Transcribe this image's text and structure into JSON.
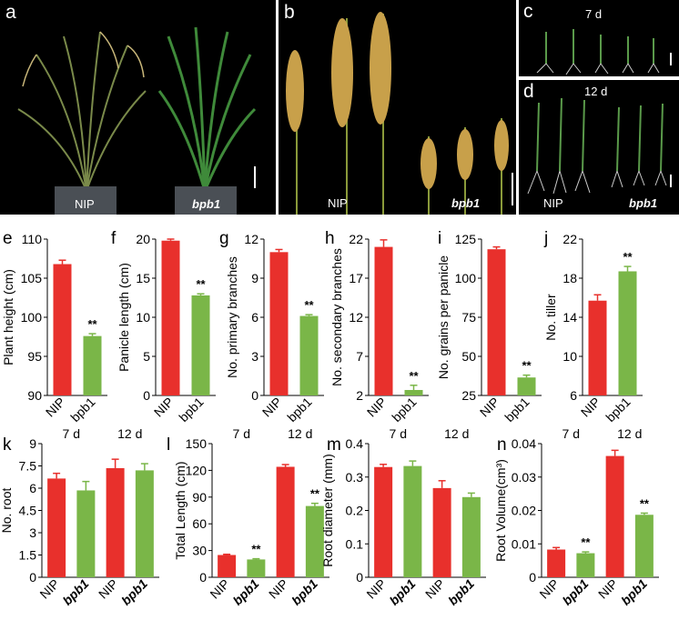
{
  "photos": {
    "a": {
      "letter": "a",
      "labels": [
        "NIP",
        "bpb1"
      ]
    },
    "b": {
      "letter": "b",
      "labels": [
        "NIP",
        "bpb1"
      ]
    },
    "c": {
      "letter": "c",
      "stage": "7 d"
    },
    "d": {
      "letter": "d",
      "stage": "12 d",
      "labels": [
        "NIP",
        "bpb1"
      ]
    }
  },
  "colors": {
    "nip": "#e8302c",
    "bpb1": "#7ab648",
    "photo_bg": "#000000"
  },
  "chart_data": [
    {
      "id": "e",
      "letter": "e",
      "type": "bar",
      "categories": [
        "NIP",
        "bpb1"
      ],
      "values": [
        106.8,
        97.6
      ],
      "errors": [
        0.5,
        0.3
      ],
      "ylabel": "Plant height (cm)",
      "ylim": [
        90,
        110
      ],
      "yticks": [
        "90",
        "95",
        "100",
        "105",
        "110"
      ],
      "annotations": [
        {
          "index": 1,
          "text": "**"
        }
      ]
    },
    {
      "id": "f",
      "letter": "f",
      "type": "bar",
      "categories": [
        "NIP",
        "bpb1"
      ],
      "values": [
        19.8,
        12.8
      ],
      "errors": [
        0.2,
        0.2
      ],
      "ylabel": "Panicle length (cm)",
      "ylim": [
        0,
        20
      ],
      "yticks": [
        "0",
        "5",
        "10",
        "15",
        "20"
      ],
      "annotations": [
        {
          "index": 1,
          "text": "**"
        }
      ]
    },
    {
      "id": "g",
      "letter": "g",
      "type": "bar",
      "categories": [
        "NIP",
        "bpb1"
      ],
      "values": [
        11.0,
        6.1
      ],
      "errors": [
        0.2,
        0.1
      ],
      "ylabel": "No. primary branches",
      "ylim": [
        0,
        12
      ],
      "yticks": [
        "0",
        "3",
        "6",
        "9",
        "12"
      ],
      "annotations": [
        {
          "index": 1,
          "text": "**"
        }
      ]
    },
    {
      "id": "h",
      "letter": "h",
      "type": "bar",
      "categories": [
        "NIP",
        "bpb1"
      ],
      "values": [
        21.0,
        2.7
      ],
      "errors": [
        0.9,
        0.6
      ],
      "ylabel": "No. secondary branches",
      "ylim": [
        2,
        22
      ],
      "yticks": [
        "2",
        "7",
        "12",
        "17",
        "22"
      ],
      "annotations": [
        {
          "index": 1,
          "text": "**"
        }
      ]
    },
    {
      "id": "i",
      "letter": "i",
      "type": "bar",
      "categories": [
        "NIP",
        "bpb1"
      ],
      "values": [
        118.5,
        36.5
      ],
      "errors": [
        1.5,
        1.5
      ],
      "ylabel": "No. grains per panicle",
      "ylim": [
        25,
        125
      ],
      "yticks": [
        "25",
        "50",
        "75",
        "100",
        "125"
      ],
      "annotations": [
        {
          "index": 1,
          "text": "**"
        }
      ]
    },
    {
      "id": "j",
      "letter": "j",
      "type": "bar",
      "categories": [
        "NIP",
        "bpb1"
      ],
      "values": [
        15.7,
        18.7
      ],
      "errors": [
        0.6,
        0.5
      ],
      "ylabel": "No. tiller",
      "ylim": [
        6,
        22
      ],
      "yticks": [
        "6",
        "10",
        "14",
        "18",
        "22"
      ],
      "annotations": [
        {
          "index": 1,
          "text": "**"
        }
      ]
    },
    {
      "id": "k",
      "letter": "k",
      "type": "bar",
      "categories": [
        "NIP",
        "bpb1",
        "NIP",
        "bpb1"
      ],
      "groups": [
        "7 d",
        "12 d"
      ],
      "values": [
        6.65,
        5.85,
        7.35,
        7.2
      ],
      "errors": [
        0.35,
        0.6,
        0.6,
        0.45
      ],
      "ylabel": "No. root",
      "ylim": [
        0,
        9
      ],
      "yticks": [
        "0",
        "1.5",
        "3",
        "4.5",
        "6",
        "7.5",
        "9"
      ],
      "annotations": []
    },
    {
      "id": "l",
      "letter": "l",
      "type": "bar",
      "categories": [
        "NIP",
        "bpb1",
        "NIP",
        "bpb1"
      ],
      "groups": [
        "7 d",
        "12 d"
      ],
      "values": [
        25,
        20,
        124,
        80
      ],
      "errors": [
        0.8,
        0.8,
        2.5,
        3
      ],
      "ylabel": "Total Length (cm)",
      "ylim": [
        0,
        150
      ],
      "yticks": [
        "0",
        "30",
        "60",
        "90",
        "120",
        "150"
      ],
      "annotations": [
        {
          "index": 1,
          "text": "**"
        },
        {
          "index": 3,
          "text": "**"
        }
      ]
    },
    {
      "id": "m",
      "letter": "m",
      "type": "bar",
      "categories": [
        "NIP",
        "bpb1",
        "NIP",
        "bpb1"
      ],
      "groups": [
        "7 d",
        "12 d"
      ],
      "values": [
        0.33,
        0.333,
        0.267,
        0.24
      ],
      "errors": [
        0.008,
        0.015,
        0.022,
        0.012
      ],
      "ylabel": "Root diameter (mm)",
      "ylim": [
        0,
        0.4
      ],
      "yticks": [
        "0",
        "0.1",
        "0.2",
        "0.3",
        "0.4"
      ],
      "annotations": []
    },
    {
      "id": "n",
      "letter": "n",
      "type": "bar",
      "categories": [
        "NIP",
        "bpb1",
        "NIP",
        "bpb1"
      ],
      "groups": [
        "7 d",
        "12 d"
      ],
      "values": [
        0.0083,
        0.0072,
        0.0363,
        0.0187
      ],
      "errors": [
        0.0006,
        0.0004,
        0.0017,
        0.0005
      ],
      "ylabel": "Root Volume(cm³)",
      "ylim": [
        0,
        0.04
      ],
      "yticks": [
        "0",
        "0.01",
        "0.02",
        "0.03",
        "0.04"
      ],
      "annotations": [
        {
          "index": 1,
          "text": "**"
        },
        {
          "index": 3,
          "text": "**"
        }
      ]
    }
  ]
}
